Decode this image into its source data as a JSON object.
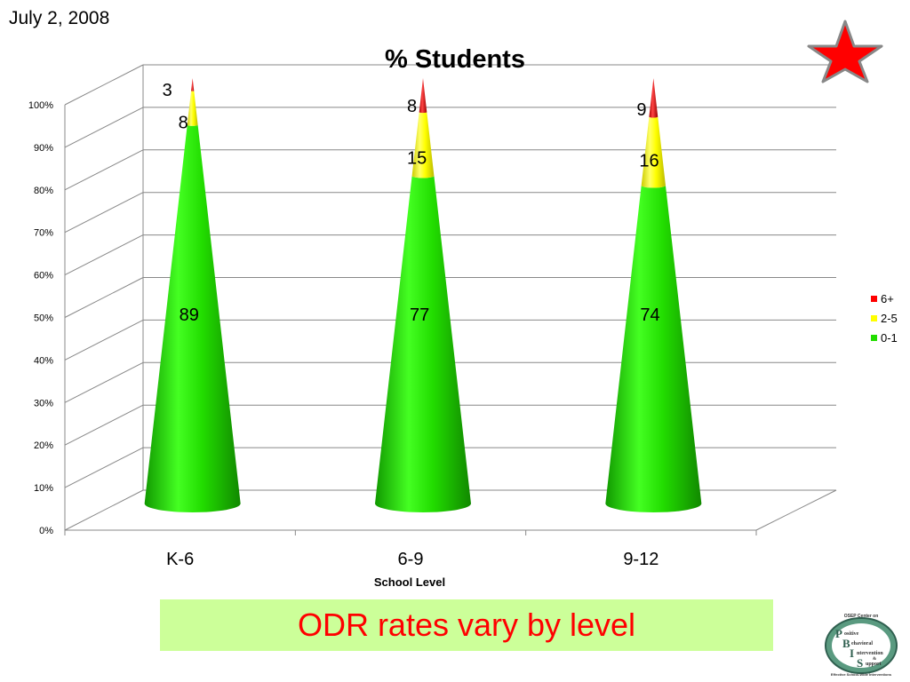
{
  "header": {
    "date": "July 2, 2008"
  },
  "banner": {
    "text": "ODR rates vary by level"
  },
  "logo": {
    "top_text": "OSEP Center on",
    "lines": [
      "ositive",
      "ehavioral",
      "ntervention",
      "&",
      "upport"
    ],
    "letters": [
      "P",
      "B",
      "I",
      "S"
    ],
    "bottom_text": "Effective School-Wide Interventions"
  },
  "colors": {
    "c01": "#22dd00",
    "c25": "#ffff00",
    "c6plus": "#ff0000",
    "star": "#ff0000",
    "banner_bg": "#ccff99",
    "banner_text": "#ff0000"
  },
  "chart_data": {
    "type": "bar",
    "subtype": "3d-cone-stacked-100",
    "title": "% Students",
    "xlabel": "School Level",
    "ylabel": "",
    "categories": [
      "K-6",
      "6-9",
      "9-12"
    ],
    "series": [
      {
        "name": "0-1",
        "values": [
          89,
          77,
          74
        ],
        "color": "#22dd00"
      },
      {
        "name": "2-5",
        "values": [
          8,
          15,
          16
        ],
        "color": "#ffff00"
      },
      {
        "name": "6+",
        "values": [
          3,
          8,
          9
        ],
        "color": "#ff0000"
      }
    ],
    "ylim": [
      0,
      100
    ],
    "yticks": [
      "0%",
      "10%",
      "20%",
      "30%",
      "40%",
      "50%",
      "60%",
      "70%",
      "80%",
      "90%",
      "100%"
    ],
    "grid": true,
    "legend": {
      "position": "right",
      "entries": [
        "6+",
        "2-5",
        "0-1"
      ]
    }
  }
}
